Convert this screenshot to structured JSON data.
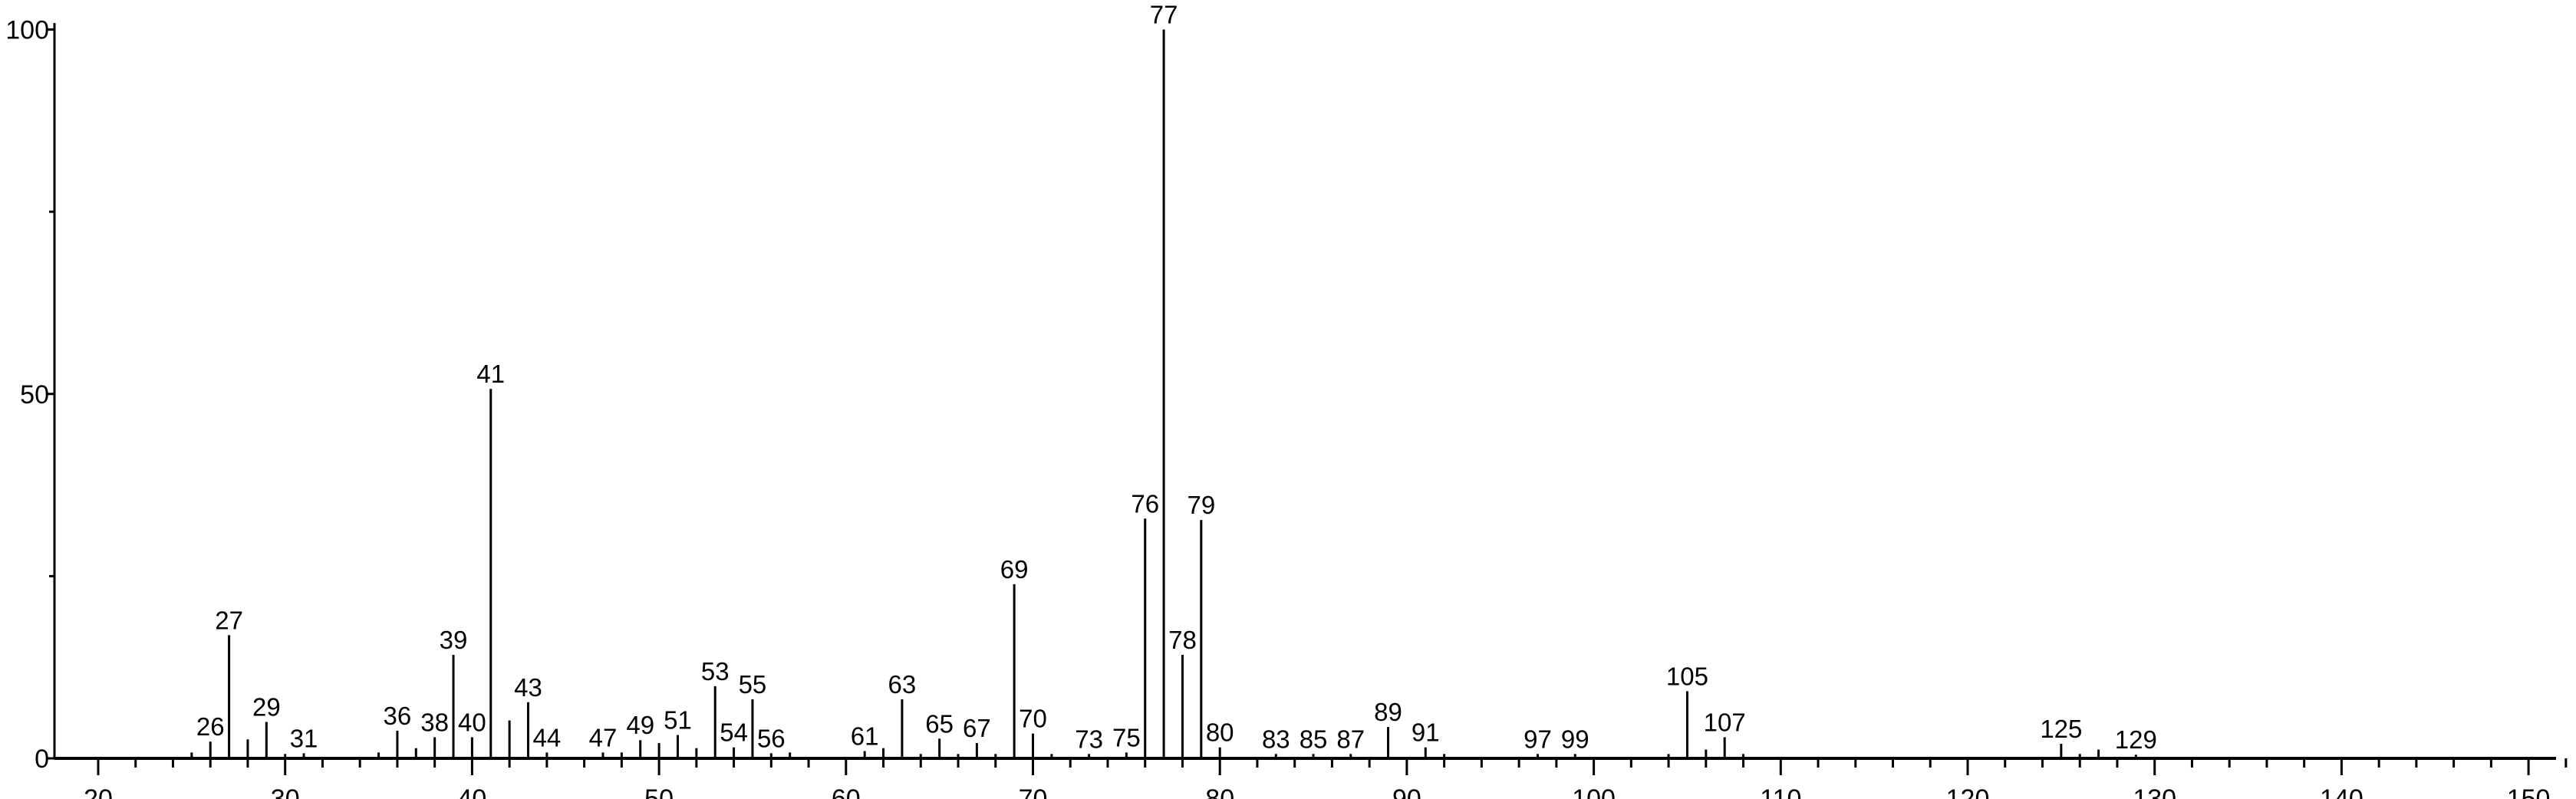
{
  "chart_data": {
    "type": "bar",
    "title": "",
    "xlabel": "",
    "ylabel": "",
    "xlim": [
      18,
      152
    ],
    "ylim": [
      0,
      100
    ],
    "grid": false,
    "x_ticks_major": [
      20,
      30,
      40,
      50,
      60,
      70,
      80,
      90,
      100,
      110,
      120,
      130,
      140,
      150
    ],
    "x_tick_labels": [
      "20",
      "30",
      "40",
      "50",
      "60",
      "70",
      "80",
      "90",
      "100",
      "110",
      "120",
      "130",
      "140",
      "150"
    ],
    "y_ticks_major": [
      0,
      50,
      100
    ],
    "y_tick_labels": [
      "0",
      "50",
      "100"
    ],
    "y_ticks_minor": [
      25,
      75
    ],
    "bar_color": "#000000",
    "peaks": [
      {
        "mz": 25,
        "intensity": 0.8,
        "label": ""
      },
      {
        "mz": 26,
        "intensity": 2.3,
        "label": "26"
      },
      {
        "mz": 27,
        "intensity": 16.9,
        "label": "27"
      },
      {
        "mz": 28,
        "intensity": 2.6,
        "label": ""
      },
      {
        "mz": 29,
        "intensity": 5.0,
        "label": "29"
      },
      {
        "mz": 30,
        "intensity": 0.6,
        "label": ""
      },
      {
        "mz": 31,
        "intensity": 0.7,
        "label": "31"
      },
      {
        "mz": 35,
        "intensity": 0.8,
        "label": ""
      },
      {
        "mz": 36,
        "intensity": 3.8,
        "label": "36"
      },
      {
        "mz": 37,
        "intensity": 1.4,
        "label": ""
      },
      {
        "mz": 38,
        "intensity": 2.9,
        "label": "38"
      },
      {
        "mz": 39,
        "intensity": 14.2,
        "label": "39"
      },
      {
        "mz": 40,
        "intensity": 2.9,
        "label": "40"
      },
      {
        "mz": 41,
        "intensity": 50.7,
        "label": "41"
      },
      {
        "mz": 42,
        "intensity": 5.2,
        "label": ""
      },
      {
        "mz": 43,
        "intensity": 7.7,
        "label": "43"
      },
      {
        "mz": 44,
        "intensity": 0.8,
        "label": "44"
      },
      {
        "mz": 47,
        "intensity": 0.8,
        "label": "47"
      },
      {
        "mz": 48,
        "intensity": 0.8,
        "label": ""
      },
      {
        "mz": 49,
        "intensity": 2.5,
        "label": "49"
      },
      {
        "mz": 50,
        "intensity": 2.1,
        "label": ""
      },
      {
        "mz": 51,
        "intensity": 3.2,
        "label": "51"
      },
      {
        "mz": 52,
        "intensity": 1.4,
        "label": ""
      },
      {
        "mz": 53,
        "intensity": 9.9,
        "label": "53"
      },
      {
        "mz": 54,
        "intensity": 1.5,
        "label": "54"
      },
      {
        "mz": 55,
        "intensity": 8.1,
        "label": "55"
      },
      {
        "mz": 56,
        "intensity": 0.7,
        "label": "56"
      },
      {
        "mz": 57,
        "intensity": 0.8,
        "label": ""
      },
      {
        "mz": 61,
        "intensity": 1.0,
        "label": "61"
      },
      {
        "mz": 62,
        "intensity": 1.4,
        "label": ""
      },
      {
        "mz": 63,
        "intensity": 8.1,
        "label": "63"
      },
      {
        "mz": 64,
        "intensity": 0.6,
        "label": ""
      },
      {
        "mz": 65,
        "intensity": 2.7,
        "label": "65"
      },
      {
        "mz": 66,
        "intensity": 0.6,
        "label": ""
      },
      {
        "mz": 67,
        "intensity": 2.1,
        "label": "67"
      },
      {
        "mz": 68,
        "intensity": 0.6,
        "label": ""
      },
      {
        "mz": 69,
        "intensity": 23.9,
        "label": "69"
      },
      {
        "mz": 70,
        "intensity": 3.4,
        "label": "70"
      },
      {
        "mz": 71,
        "intensity": 0.6,
        "label": ""
      },
      {
        "mz": 73,
        "intensity": 0.6,
        "label": "73"
      },
      {
        "mz": 75,
        "intensity": 0.8,
        "label": "75"
      },
      {
        "mz": 76,
        "intensity": 32.9,
        "label": "76"
      },
      {
        "mz": 77,
        "intensity": 100,
        "label": "77"
      },
      {
        "mz": 78,
        "intensity": 14.2,
        "label": "78"
      },
      {
        "mz": 79,
        "intensity": 32.7,
        "label": "79"
      },
      {
        "mz": 80,
        "intensity": 1.5,
        "label": "80"
      },
      {
        "mz": 83,
        "intensity": 0.6,
        "label": "83"
      },
      {
        "mz": 85,
        "intensity": 0.6,
        "label": "85"
      },
      {
        "mz": 87,
        "intensity": 0.6,
        "label": "87"
      },
      {
        "mz": 89,
        "intensity": 4.3,
        "label": "89"
      },
      {
        "mz": 91,
        "intensity": 1.5,
        "label": "91"
      },
      {
        "mz": 92,
        "intensity": 0.6,
        "label": ""
      },
      {
        "mz": 97,
        "intensity": 0.6,
        "label": "97"
      },
      {
        "mz": 99,
        "intensity": 0.6,
        "label": "99"
      },
      {
        "mz": 104,
        "intensity": 0.6,
        "label": ""
      },
      {
        "mz": 105,
        "intensity": 9.2,
        "label": "105"
      },
      {
        "mz": 106,
        "intensity": 1.2,
        "label": ""
      },
      {
        "mz": 107,
        "intensity": 2.9,
        "label": "107"
      },
      {
        "mz": 108,
        "intensity": 0.6,
        "label": ""
      },
      {
        "mz": 125,
        "intensity": 2.0,
        "label": "125"
      },
      {
        "mz": 126,
        "intensity": 0.6,
        "label": ""
      },
      {
        "mz": 127,
        "intensity": 1.2,
        "label": ""
      },
      {
        "mz": 129,
        "intensity": 0.5,
        "label": "129"
      }
    ]
  }
}
